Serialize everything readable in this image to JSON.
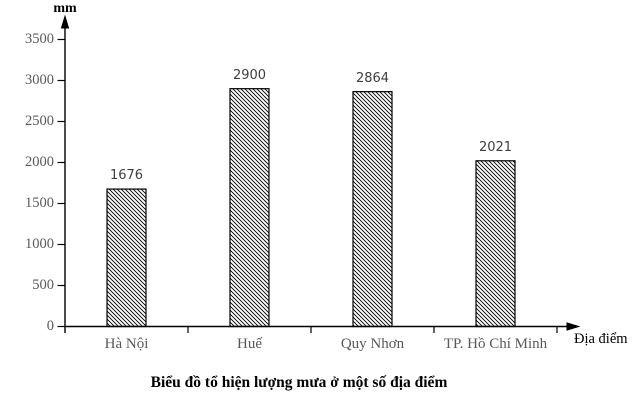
{
  "chart_data": {
    "type": "bar",
    "title": "Biểu đồ tổ hiện lượng mưa ở một số địa điểm",
    "ylabel": "mm",
    "xlabel": "Địa điểm",
    "categories": [
      "Hà Nội",
      "Huế",
      "Quy Nhơn",
      "TP. Hồ Chí Minh"
    ],
    "values": [
      1676,
      2900,
      2864,
      2021
    ],
    "value_labels": [
      "1676",
      "2900",
      "2864",
      "2021"
    ],
    "yticks": [
      0,
      500,
      1000,
      1500,
      2000,
      2500,
      3000,
      3500
    ],
    "ytick_labels": [
      "0",
      "500",
      "1000",
      "1500",
      "2000",
      "2500",
      "3000",
      "3500"
    ],
    "ylim": [
      0,
      3750
    ],
    "grid": false,
    "legend": false,
    "bar_fill": "diagonal-hatch-black-on-white",
    "bar_edge_color": "#000000",
    "axis_color": "#000000",
    "tick_label_color": "#595959",
    "value_label_color": "#3f3f3f"
  }
}
